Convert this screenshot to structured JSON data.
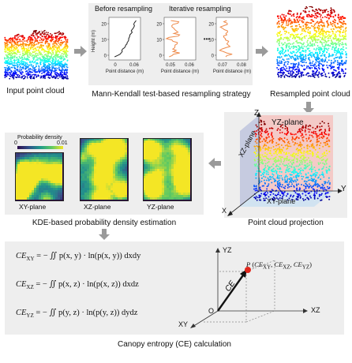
{
  "step1": {
    "caption": "Input point cloud"
  },
  "step2": {
    "caption": "Mann-Kendall test-based resampling strategy",
    "before_label": "Before resampling",
    "iterative_label": "Iterative resampling",
    "ylabel": "Height (m)",
    "plots": [
      {
        "xlabel": "Point distance (m)",
        "xticks": [
          "0",
          "0.06"
        ],
        "yticks": [
          "20",
          "10",
          "0"
        ]
      },
      {
        "xlabel": "Point distance (m)",
        "xticks": [
          "0.05",
          "0.06"
        ],
        "yticks": [
          "20",
          "10",
          "0"
        ]
      },
      {
        "xlabel": "Point distance (m)",
        "xticks": [
          "0.07",
          "0.08"
        ],
        "yticks": [
          "20",
          "10",
          "0"
        ]
      }
    ],
    "ellipsis": "•••"
  },
  "step3": {
    "caption": "Resampled point cloud"
  },
  "step4": {
    "caption": "Point cloud projection",
    "axes": {
      "x": "X",
      "y": "Y",
      "z": "Z"
    },
    "planes": {
      "xz": "XZ-plane",
      "yz": "YZ-plane",
      "xy": "XY-plane"
    }
  },
  "step5": {
    "caption": "KDE-based probability density estimation",
    "legend_title": "Probability density",
    "legend_min": "0",
    "legend_max": "0.01",
    "plane_labels": [
      "XY-plane",
      "XZ-plane",
      "YZ-plane"
    ]
  },
  "step6": {
    "caption": "Canopy entropy (CE) calculation",
    "equations": [
      {
        "lhs": "CE",
        "sub": "XY",
        "rhs": "= − ∬ p(x, y) · ln(p(x, y)) dxdy"
      },
      {
        "lhs": "CE",
        "sub": "XZ",
        "rhs": "= − ∬ p(x, z) · ln(p(x, z)) dxdz"
      },
      {
        "lhs": "CE",
        "sub": "YZ",
        "rhs": "= − ∬ p(y, z) · ln(p(y, z)) dydz"
      }
    ],
    "axis_yz": "YZ",
    "axis_xz": "XZ",
    "axis_xy": "XY",
    "origin": "O",
    "point_label": "P (CE",
    "vector_label": "CE",
    "point_coords": "P (CEXY, CEXZ, CEYZ)"
  },
  "colors": {
    "arrow": "#9a9a9a",
    "panel": "#eeeeee",
    "curve_before": "#222222",
    "curve_iter": "#ee8a4a",
    "point": "#e0281e"
  }
}
